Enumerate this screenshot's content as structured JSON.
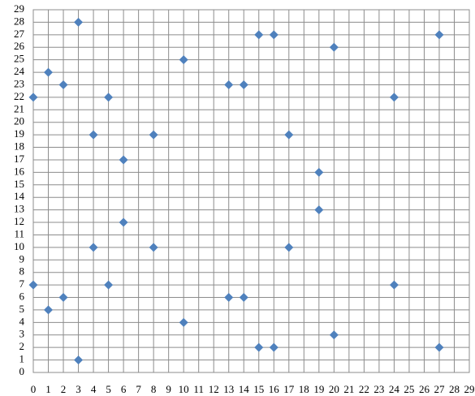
{
  "chart_data": {
    "type": "scatter",
    "x": [
      0,
      0,
      1,
      1,
      2,
      2,
      3,
      3,
      4,
      4,
      5,
      5,
      6,
      6,
      8,
      8,
      10,
      10,
      13,
      13,
      14,
      14,
      15,
      15,
      16,
      16,
      17,
      17,
      19,
      19,
      20,
      20,
      24,
      24,
      27,
      27
    ],
    "values": [
      22,
      7,
      24,
      5,
      23,
      6,
      28,
      1,
      19,
      10,
      22,
      7,
      17,
      12,
      19,
      10,
      25,
      4,
      23,
      6,
      23,
      6,
      27,
      2,
      27,
      2,
      19,
      10,
      16,
      13,
      26,
      3,
      22,
      7,
      27,
      2
    ],
    "color": "#4f81bd",
    "xlim": [
      0,
      29
    ],
    "ylim": [
      0,
      29
    ],
    "xticks": [
      0,
      1,
      2,
      3,
      4,
      5,
      6,
      7,
      8,
      9,
      10,
      11,
      12,
      13,
      14,
      15,
      16,
      17,
      18,
      19,
      20,
      21,
      22,
      23,
      24,
      25,
      26,
      27,
      28,
      29
    ],
    "yticks": [
      0,
      1,
      2,
      3,
      4,
      5,
      6,
      7,
      8,
      9,
      10,
      11,
      12,
      13,
      14,
      15,
      16,
      17,
      18,
      19,
      20,
      21,
      22,
      23,
      24,
      25,
      26,
      27,
      28,
      29
    ],
    "grid": true
  }
}
